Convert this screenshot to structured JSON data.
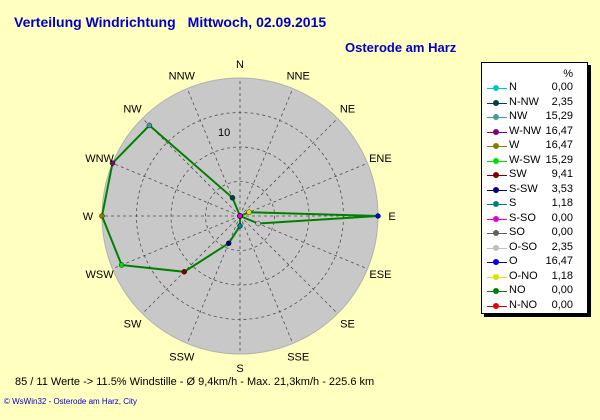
{
  "header": {
    "title": "Verteilung Windrichtung",
    "date": "Mittwoch, 02.09.2015",
    "location": "Osterode am Harz"
  },
  "legend": {
    "unit_label": "%",
    "items": [
      {
        "label": "N",
        "value": "0,00",
        "color": "#00c8c8"
      },
      {
        "label": "N-NW",
        "value": "2,35",
        "color": "#004040"
      },
      {
        "label": "NW",
        "value": "15,29",
        "color": "#40a0a0"
      },
      {
        "label": "W-NW",
        "value": "16,47",
        "color": "#800080"
      },
      {
        "label": "W",
        "value": "16,47",
        "color": "#808000"
      },
      {
        "label": "W-SW",
        "value": "15,29",
        "color": "#00e000"
      },
      {
        "label": "SW",
        "value": "9,41",
        "color": "#800000"
      },
      {
        "label": "S-SW",
        "value": "3,53",
        "color": "#000080"
      },
      {
        "label": "S",
        "value": "1,18",
        "color": "#008080"
      },
      {
        "label": "S-SO",
        "value": "0,00",
        "color": "#e000e0"
      },
      {
        "label": "SO",
        "value": "0,00",
        "color": "#606060"
      },
      {
        "label": "O-SO",
        "value": "2,35",
        "color": "#c0c0c0"
      },
      {
        "label": "O",
        "value": "16,47",
        "color": "#0000e0"
      },
      {
        "label": "O-NO",
        "value": "1,18",
        "color": "#e0e000"
      },
      {
        "label": "NO",
        "value": "0,00",
        "color": "#008000"
      },
      {
        "label": "N-NO",
        "value": "0,00",
        "color": "#e00000"
      }
    ]
  },
  "stats": {
    "text": "85 / 11 Werte  -> 11.5% Windstille   -   Ø 9,4km/h   -  Max. 21,3km/h   -   225.6 km"
  },
  "footer": {
    "text": "© WsWin32   -   Osterode am Harz, City"
  },
  "chart_data": {
    "type": "radar",
    "directions": [
      "N",
      "NNE",
      "NE",
      "ENE",
      "E",
      "ESE",
      "SE",
      "SSE",
      "S",
      "SSW",
      "SW",
      "WSW",
      "W",
      "WNW",
      "NW",
      "NNW"
    ],
    "values": [
      0.0,
      0.0,
      0.0,
      1.18,
      16.47,
      2.35,
      0.0,
      0.0,
      1.18,
      3.53,
      9.41,
      15.29,
      16.47,
      16.47,
      15.29,
      2.35
    ],
    "point_colors": [
      "#00c8c8",
      "#e00000",
      "#008000",
      "#e0e000",
      "#0000e0",
      "#c0c0c0",
      "#606060",
      "#e000e0",
      "#008080",
      "#000080",
      "#800000",
      "#00e000",
      "#808000",
      "#800080",
      "#40a0a0",
      "#004040"
    ],
    "radial_max": 16.47,
    "radial_tick_label": "10",
    "radial_tick_value": 10,
    "line_color": "#008000",
    "background_color": "#c8c8c8",
    "grid": true
  }
}
